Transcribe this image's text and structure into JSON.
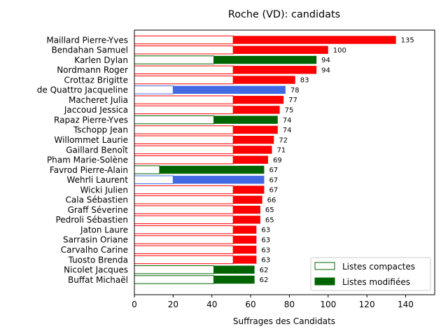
{
  "chart_data": {
    "type": "bar",
    "orientation": "horizontal",
    "stacked": true,
    "title": "Roche (VD): candidats",
    "xlabel": "Suffrages des Candidats",
    "ylabel": "",
    "xlim": [
      0,
      155
    ],
    "x_ticks": [
      "0",
      "20",
      "40",
      "60",
      "80",
      "100",
      "120",
      "140"
    ],
    "grid": false,
    "legend_placement": "lower-right",
    "legend": {
      "compact_label": "Listes compactes",
      "modified_label": "Listes modifiées"
    },
    "party_colors": {
      "red": "#ff0000",
      "green": "#006400",
      "blue": "#4169e1"
    },
    "candidates": [
      {
        "name": "Maillard Pierre-Yves",
        "total": 135,
        "compact": 51,
        "modified": 84,
        "color": "red"
      },
      {
        "name": "Bendahan Samuel",
        "total": 100,
        "compact": 51,
        "modified": 49,
        "color": "red"
      },
      {
        "name": "Karlen Dylan",
        "total": 94,
        "compact": 41,
        "modified": 53,
        "color": "green"
      },
      {
        "name": "Nordmann Roger",
        "total": 94,
        "compact": 51,
        "modified": 43,
        "color": "red"
      },
      {
        "name": "Crottaz Brigitte",
        "total": 83,
        "compact": 51,
        "modified": 32,
        "color": "red"
      },
      {
        "name": "de Quattro Jacqueline",
        "total": 78,
        "compact": 20,
        "modified": 58,
        "color": "blue"
      },
      {
        "name": "Macheret Julia",
        "total": 77,
        "compact": 51,
        "modified": 26,
        "color": "red"
      },
      {
        "name": "Jaccoud Jessica",
        "total": 75,
        "compact": 51,
        "modified": 24,
        "color": "red"
      },
      {
        "name": "Rapaz Pierre-Yves",
        "total": 74,
        "compact": 41,
        "modified": 33,
        "color": "green"
      },
      {
        "name": "Tschopp Jean",
        "total": 74,
        "compact": 51,
        "modified": 23,
        "color": "red"
      },
      {
        "name": "Willommet Laurie",
        "total": 72,
        "compact": 51,
        "modified": 21,
        "color": "red"
      },
      {
        "name": "Gaillard Benoît",
        "total": 71,
        "compact": 51,
        "modified": 20,
        "color": "red"
      },
      {
        "name": "Pham Marie-Solène",
        "total": 69,
        "compact": 51,
        "modified": 18,
        "color": "red"
      },
      {
        "name": "Favrod Pierre-Alain",
        "total": 67,
        "compact": 13,
        "modified": 54,
        "color": "green"
      },
      {
        "name": "Wehrli Laurent",
        "total": 67,
        "compact": 20,
        "modified": 47,
        "color": "blue"
      },
      {
        "name": "Wicki Julien",
        "total": 67,
        "compact": 51,
        "modified": 16,
        "color": "red"
      },
      {
        "name": "Cala Sébastien",
        "total": 66,
        "compact": 51,
        "modified": 15,
        "color": "red"
      },
      {
        "name": "Graff Séverine",
        "total": 65,
        "compact": 51,
        "modified": 14,
        "color": "red"
      },
      {
        "name": "Pedroli Sébastien",
        "total": 65,
        "compact": 51,
        "modified": 14,
        "color": "red"
      },
      {
        "name": "Jaton Laure",
        "total": 63,
        "compact": 51,
        "modified": 12,
        "color": "red"
      },
      {
        "name": "Sarrasin Oriane",
        "total": 63,
        "compact": 51,
        "modified": 12,
        "color": "red"
      },
      {
        "name": "Carvalho Carine",
        "total": 63,
        "compact": 51,
        "modified": 12,
        "color": "red"
      },
      {
        "name": "Tuosto Brenda",
        "total": 63,
        "compact": 51,
        "modified": 12,
        "color": "red"
      },
      {
        "name": "Nicolet Jacques",
        "total": 62,
        "compact": 41,
        "modified": 21,
        "color": "green"
      },
      {
        "name": "Buffat Michaël",
        "total": 62,
        "compact": 41,
        "modified": 21,
        "color": "green"
      }
    ]
  }
}
